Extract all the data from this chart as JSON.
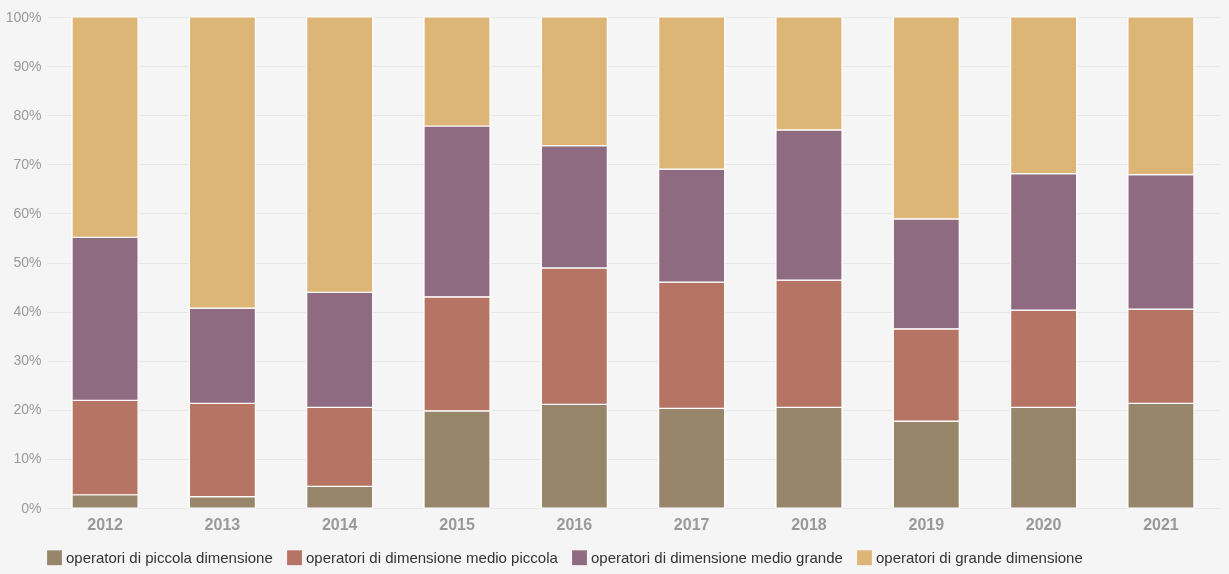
{
  "chart_data": {
    "type": "bar",
    "stacked": true,
    "categories": [
      "2012",
      "2013",
      "2014",
      "2015",
      "2016",
      "2017",
      "2018",
      "2019",
      "2020",
      "2021"
    ],
    "series": [
      {
        "name": "operatori di piccola dimensione",
        "color": "#97866a",
        "values": [
          2.7,
          2.3,
          4.4,
          19.8,
          21.1,
          20.3,
          20.5,
          17.7,
          20.5,
          21.3
        ]
      },
      {
        "name": "operatori di dimensione medio piccola",
        "color": "#b57464",
        "values": [
          19.2,
          19.0,
          16.1,
          23.2,
          27.8,
          25.7,
          25.9,
          18.8,
          19.8,
          19.2
        ]
      },
      {
        "name": "operatori di dimensione medio grande",
        "color": "#8e6b80",
        "values": [
          33.2,
          19.4,
          23.4,
          34.8,
          24.9,
          23.0,
          30.6,
          22.4,
          27.8,
          27.4
        ]
      },
      {
        "name": "operatori di grande dimensione",
        "color": "#ddb577",
        "values": [
          44.9,
          59.3,
          56.1,
          22.2,
          26.2,
          31.0,
          23.0,
          41.1,
          31.9,
          32.1
        ]
      }
    ],
    "ylim": [
      0,
      100
    ],
    "yticks": [
      {
        "value": 0,
        "label": "0%"
      },
      {
        "value": 10,
        "label": "10%"
      },
      {
        "value": 20,
        "label": "20%"
      },
      {
        "value": 30,
        "label": "30%"
      },
      {
        "value": 40,
        "label": "40%"
      },
      {
        "value": 50,
        "label": "50%"
      },
      {
        "value": 60,
        "label": "60%"
      },
      {
        "value": 70,
        "label": "70%"
      },
      {
        "value": 80,
        "label": "80%"
      },
      {
        "value": 90,
        "label": "90%"
      },
      {
        "value": 100,
        "label": "100%"
      }
    ],
    "grid": "y",
    "legend": "bottom"
  }
}
